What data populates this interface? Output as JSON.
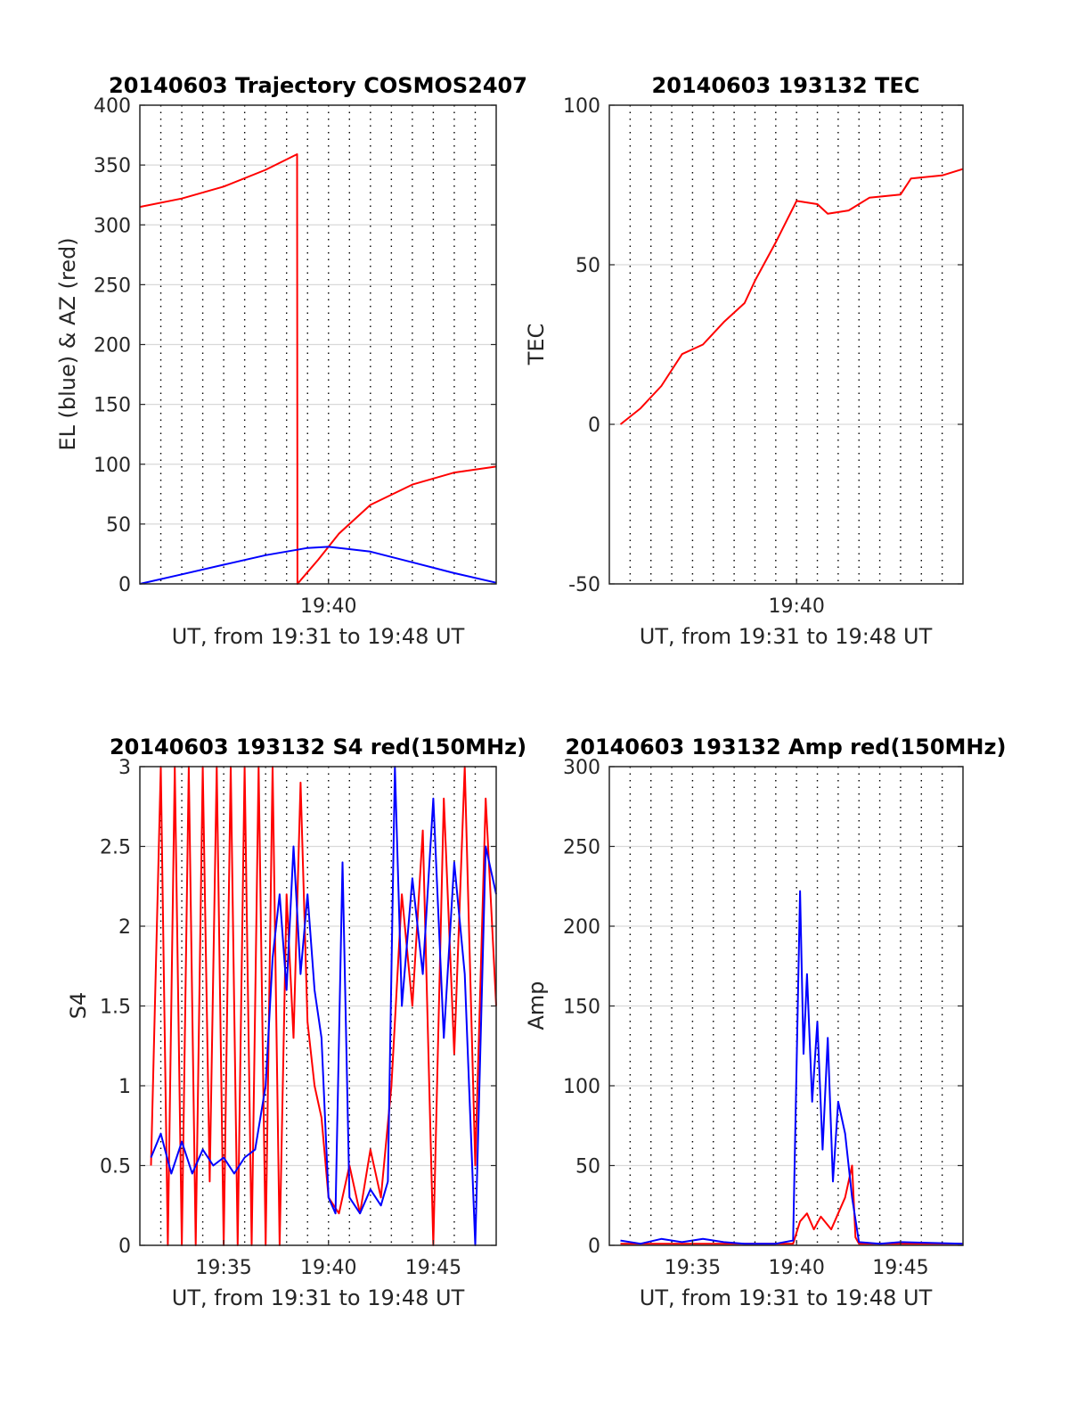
{
  "figure": {
    "colors": {
      "red": "#ff0000",
      "blue": "#0000ff",
      "grid": "#000000",
      "axis": "#262626"
    }
  },
  "chart_data": [
    {
      "id": "trajectory",
      "type": "line",
      "title": "20140603 Trajectory COSMOS2407",
      "xlabel": "UT, from 19:31 to 19:48 UT",
      "ylabel": "EL (blue) & AZ (red)",
      "xlim": [
        "19:31:00",
        "19:48:00"
      ],
      "ylim": [
        0,
        400
      ],
      "yticks": [
        0,
        50,
        100,
        150,
        200,
        250,
        300,
        350,
        400
      ],
      "xticks": [
        {
          "t": "19:40:00",
          "label": "19:40"
        }
      ],
      "grid": true,
      "series": [
        {
          "color": "#ff0000",
          "points": [
            [
              "19:31:00",
              315
            ],
            [
              "19:33:00",
              322
            ],
            [
              "19:35:00",
              332
            ],
            [
              "19:37:00",
              346
            ],
            [
              "19:38:30",
              359
            ],
            [
              "19:38:31",
              0
            ],
            [
              "19:39:30",
              20
            ],
            [
              "19:40:30",
              42
            ],
            [
              "19:42:00",
              66
            ],
            [
              "19:44:00",
              83
            ],
            [
              "19:46:00",
              93
            ],
            [
              "19:48:00",
              98
            ]
          ]
        },
        {
          "color": "#0000ff",
          "points": [
            [
              "19:31:00",
              0
            ],
            [
              "19:33:00",
              8
            ],
            [
              "19:35:00",
              16
            ],
            [
              "19:37:00",
              24
            ],
            [
              "19:39:00",
              30
            ],
            [
              "19:40:00",
              31
            ],
            [
              "19:42:00",
              27
            ],
            [
              "19:44:00",
              18
            ],
            [
              "19:46:00",
              9
            ],
            [
              "19:48:00",
              1
            ]
          ]
        }
      ]
    },
    {
      "id": "tec",
      "type": "line",
      "title": "20140603 193132 TEC",
      "xlabel": "UT, from 19:31 to 19:48 UT",
      "ylabel": "TEC",
      "xlim": [
        "19:31:00",
        "19:48:00"
      ],
      "ylim": [
        -50,
        100
      ],
      "yticks": [
        -50,
        0,
        50,
        100
      ],
      "xticks": [
        {
          "t": "19:40:00",
          "label": "19:40"
        }
      ],
      "grid": true,
      "series": [
        {
          "color": "#ff0000",
          "points": [
            [
              "19:31:32",
              0
            ],
            [
              "19:32:30",
              5
            ],
            [
              "19:33:30",
              12
            ],
            [
              "19:34:30",
              22
            ],
            [
              "19:35:30",
              25
            ],
            [
              "19:36:30",
              32
            ],
            [
              "19:37:30",
              38
            ],
            [
              "19:38:00",
              45
            ],
            [
              "19:39:00",
              57
            ],
            [
              "19:40:00",
              70
            ],
            [
              "19:41:00",
              69
            ],
            [
              "19:41:30",
              66
            ],
            [
              "19:42:30",
              67
            ],
            [
              "19:43:30",
              71
            ],
            [
              "19:45:00",
              72
            ],
            [
              "19:45:30",
              77
            ],
            [
              "19:47:00",
              78
            ],
            [
              "19:48:00",
              80
            ]
          ]
        }
      ]
    },
    {
      "id": "s4",
      "type": "line",
      "title": "20140603 193132 S4 red(150MHz)",
      "xlabel": "UT, from 19:31 to 19:48 UT",
      "ylabel": "S4",
      "xlim": [
        "19:31:00",
        "19:48:00"
      ],
      "ylim": [
        0,
        3
      ],
      "yticks": [
        0,
        0.5,
        1,
        1.5,
        2,
        2.5,
        3
      ],
      "xticks": [
        {
          "t": "19:35:00",
          "label": "19:35"
        },
        {
          "t": "19:40:00",
          "label": "19:40"
        },
        {
          "t": "19:45:00",
          "label": "19:45"
        }
      ],
      "grid": true,
      "series": [
        {
          "color": "#ff0000",
          "points": [
            [
              "19:31:32",
              0.5
            ],
            [
              "19:32:00",
              3
            ],
            [
              "19:32:20",
              0
            ],
            [
              "19:32:40",
              3
            ],
            [
              "19:33:00",
              0
            ],
            [
              "19:33:20",
              3
            ],
            [
              "19:33:40",
              0
            ],
            [
              "19:34:00",
              3
            ],
            [
              "19:34:20",
              0.4
            ],
            [
              "19:34:40",
              3
            ],
            [
              "19:35:00",
              0
            ],
            [
              "19:35:20",
              3
            ],
            [
              "19:35:40",
              0
            ],
            [
              "19:36:00",
              3
            ],
            [
              "19:36:20",
              0
            ],
            [
              "19:36:40",
              3
            ],
            [
              "19:37:00",
              0
            ],
            [
              "19:37:20",
              3
            ],
            [
              "19:37:40",
              0
            ],
            [
              "19:38:00",
              2.2
            ],
            [
              "19:38:20",
              1.3
            ],
            [
              "19:38:40",
              2.9
            ],
            [
              "19:39:00",
              1.4
            ],
            [
              "19:39:20",
              1.0
            ],
            [
              "19:39:40",
              0.8
            ],
            [
              "19:40:00",
              0.3
            ],
            [
              "19:40:30",
              0.2
            ],
            [
              "19:41:00",
              0.5
            ],
            [
              "19:41:30",
              0.2
            ],
            [
              "19:42:00",
              0.6
            ],
            [
              "19:42:30",
              0.3
            ],
            [
              "19:43:00",
              1.0
            ],
            [
              "19:43:30",
              2.2
            ],
            [
              "19:44:00",
              1.5
            ],
            [
              "19:44:30",
              2.6
            ],
            [
              "19:45:00",
              0
            ],
            [
              "19:45:30",
              2.8
            ],
            [
              "19:46:00",
              1.2
            ],
            [
              "19:46:30",
              3
            ],
            [
              "19:47:00",
              0.5
            ],
            [
              "19:47:30",
              2.8
            ],
            [
              "19:48:00",
              1.5
            ]
          ]
        },
        {
          "color": "#0000ff",
          "points": [
            [
              "19:31:32",
              0.55
            ],
            [
              "19:32:00",
              0.7
            ],
            [
              "19:32:30",
              0.45
            ],
            [
              "19:33:00",
              0.65
            ],
            [
              "19:33:30",
              0.45
            ],
            [
              "19:34:00",
              0.6
            ],
            [
              "19:34:30",
              0.5
            ],
            [
              "19:35:00",
              0.55
            ],
            [
              "19:35:30",
              0.45
            ],
            [
              "19:36:00",
              0.55
            ],
            [
              "19:36:30",
              0.6
            ],
            [
              "19:37:00",
              1.0
            ],
            [
              "19:37:20",
              1.8
            ],
            [
              "19:37:40",
              2.2
            ],
            [
              "19:38:00",
              1.6
            ],
            [
              "19:38:20",
              2.5
            ],
            [
              "19:38:40",
              1.7
            ],
            [
              "19:39:00",
              2.2
            ],
            [
              "19:39:20",
              1.6
            ],
            [
              "19:39:40",
              1.3
            ],
            [
              "19:40:00",
              0.3
            ],
            [
              "19:40:20",
              0.2
            ],
            [
              "19:40:40",
              2.4
            ],
            [
              "19:41:00",
              0.3
            ],
            [
              "19:41:30",
              0.2
            ],
            [
              "19:42:00",
              0.35
            ],
            [
              "19:42:30",
              0.25
            ],
            [
              "19:42:50",
              0.4
            ],
            [
              "19:43:10",
              3
            ],
            [
              "19:43:30",
              1.5
            ],
            [
              "19:44:00",
              2.3
            ],
            [
              "19:44:30",
              1.7
            ],
            [
              "19:45:00",
              2.8
            ],
            [
              "19:45:30",
              1.3
            ],
            [
              "19:46:00",
              2.4
            ],
            [
              "19:46:30",
              1.7
            ],
            [
              "19:47:00",
              0
            ],
            [
              "19:47:30",
              2.5
            ],
            [
              "19:48:00",
              2.2
            ]
          ]
        }
      ]
    },
    {
      "id": "amp",
      "type": "line",
      "title": "20140603 193132 Amp red(150MHz)",
      "xlabel": "UT, from 19:31 to 19:48 UT",
      "ylabel": "Amp",
      "xlim": [
        "19:31:00",
        "19:48:00"
      ],
      "ylim": [
        0,
        300
      ],
      "yticks": [
        0,
        50,
        100,
        150,
        200,
        250,
        300
      ],
      "xticks": [
        {
          "t": "19:35:00",
          "label": "19:35"
        },
        {
          "t": "19:40:00",
          "label": "19:40"
        },
        {
          "t": "19:45:00",
          "label": "19:45"
        }
      ],
      "grid": true,
      "series": [
        {
          "color": "#ff0000",
          "points": [
            [
              "19:31:32",
              1
            ],
            [
              "19:39:50",
              1
            ],
            [
              "19:40:10",
              15
            ],
            [
              "19:40:30",
              20
            ],
            [
              "19:40:50",
              10
            ],
            [
              "19:41:10",
              18
            ],
            [
              "19:41:40",
              10
            ],
            [
              "19:42:00",
              20
            ],
            [
              "19:42:20",
              30
            ],
            [
              "19:42:40",
              50
            ],
            [
              "19:42:50",
              5
            ],
            [
              "19:43:00",
              1
            ],
            [
              "19:48:00",
              1
            ]
          ]
        },
        {
          "color": "#0000ff",
          "points": [
            [
              "19:31:32",
              3
            ],
            [
              "19:32:30",
              1
            ],
            [
              "19:33:30",
              4
            ],
            [
              "19:34:30",
              2
            ],
            [
              "19:35:30",
              4
            ],
            [
              "19:36:30",
              2
            ],
            [
              "19:37:30",
              1
            ],
            [
              "19:39:00",
              1
            ],
            [
              "19:39:50",
              3
            ],
            [
              "19:40:10",
              222
            ],
            [
              "19:40:20",
              120
            ],
            [
              "19:40:30",
              170
            ],
            [
              "19:40:45",
              90
            ],
            [
              "19:41:00",
              140
            ],
            [
              "19:41:15",
              60
            ],
            [
              "19:41:30",
              130
            ],
            [
              "19:41:45",
              40
            ],
            [
              "19:42:00",
              90
            ],
            [
              "19:42:20",
              70
            ],
            [
              "19:42:40",
              30
            ],
            [
              "19:43:00",
              2
            ],
            [
              "19:44:00",
              1
            ],
            [
              "19:45:00",
              2
            ],
            [
              "19:48:00",
              1
            ]
          ]
        }
      ]
    }
  ]
}
